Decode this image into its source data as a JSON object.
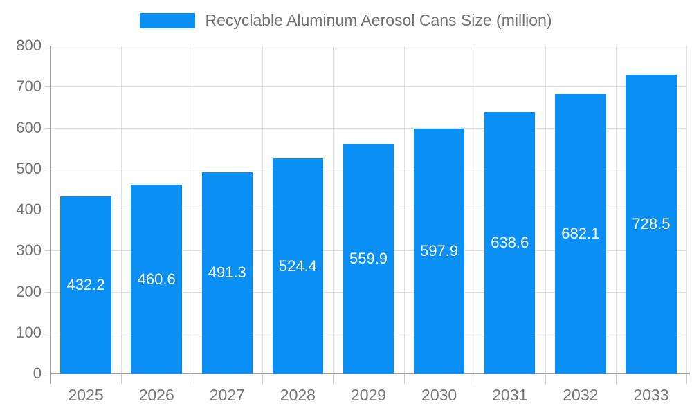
{
  "chart_data": {
    "type": "bar",
    "title": "Recyclable Aluminum Aerosol Cans Size (million)",
    "legend": {
      "position": "top",
      "entries": [
        "Recyclable Aluminum Aerosol Cans Size (million)"
      ]
    },
    "categories": [
      "2025",
      "2026",
      "2027",
      "2028",
      "2029",
      "2030",
      "2031",
      "2032",
      "2033"
    ],
    "values": [
      432.2,
      460.6,
      491.3,
      524.4,
      559.9,
      597.9,
      638.6,
      682.1,
      728.5
    ],
    "xlabel": "",
    "ylabel": "",
    "ylim": [
      0,
      800
    ],
    "ytick_interval": 100,
    "ytick_labels": [
      "0",
      "100",
      "200",
      "300",
      "400",
      "500",
      "600",
      "700",
      "800"
    ],
    "grid": true,
    "value_labels_shown": true,
    "colors": {
      "bar": "#0A90F5",
      "value_label": "#ffffff",
      "axis_line": "#9e9e9e",
      "gridline": "#e2e2e2",
      "tick": "#cccccc",
      "axis_text": "#757575",
      "legend_text": "#737373",
      "background": "#ffffff"
    }
  }
}
